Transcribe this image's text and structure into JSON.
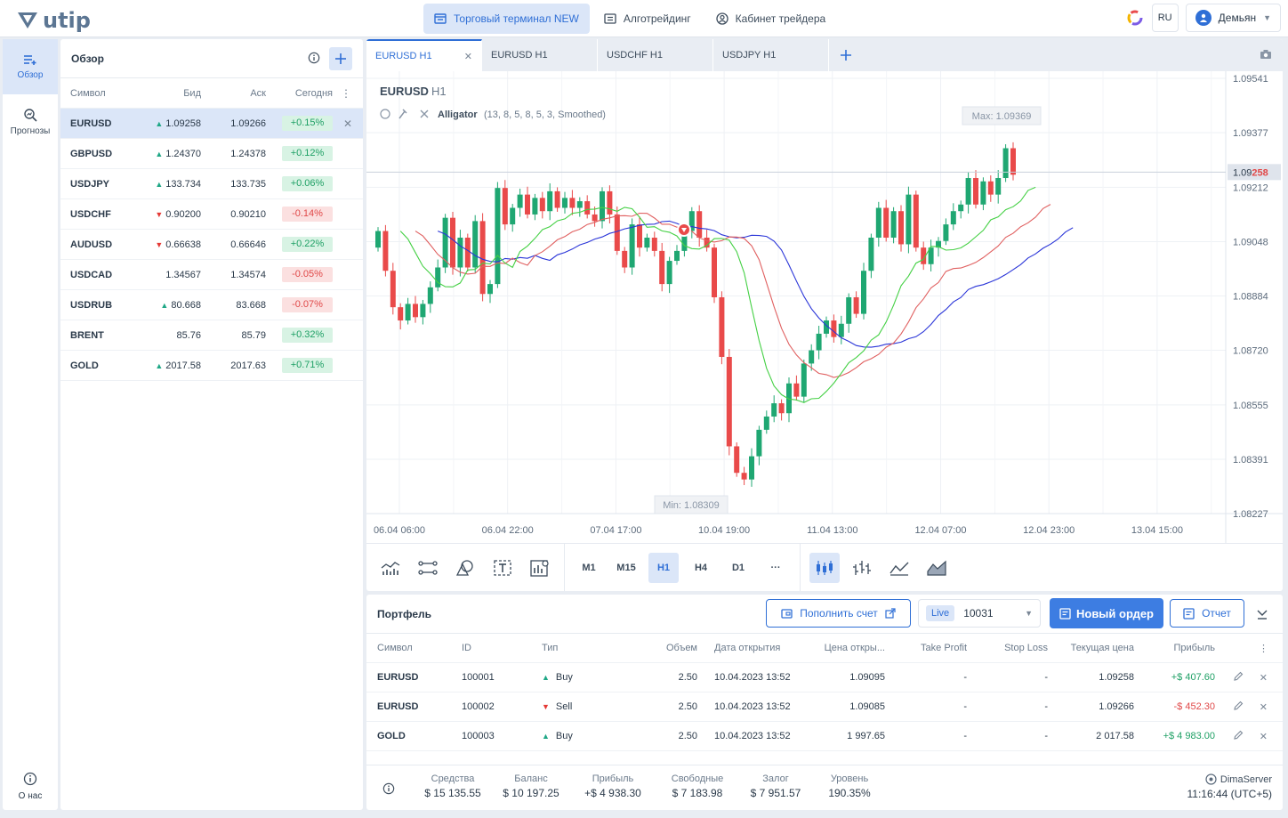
{
  "app": {
    "logo_text": "utip"
  },
  "nav": [
    {
      "label": "Торговый терминал NEW"
    },
    {
      "label": "Алготрейдинг"
    },
    {
      "label": "Кабинет трейдера"
    }
  ],
  "topright": {
    "lang": "RU",
    "user": "Демьян"
  },
  "rail": {
    "overview": "Обзор",
    "forecasts": "Прогнозы",
    "about": "О нас"
  },
  "watchlist": {
    "title": "Обзор",
    "headers": {
      "symbol": "Символ",
      "bid": "Бид",
      "ask": "Аск",
      "today": "Сегодня"
    },
    "rows": [
      {
        "symbol": "EURUSD",
        "dir": "up",
        "bid": "1.09258",
        "ask": "1.09266",
        "change": "+0.15%"
      },
      {
        "symbol": "GBPUSD",
        "dir": "up",
        "bid": "1.24370",
        "ask": "1.24378",
        "change": "+0.12%"
      },
      {
        "symbol": "USDJPY",
        "dir": "up",
        "bid": "133.734",
        "ask": "133.735",
        "change": "+0.06%"
      },
      {
        "symbol": "USDCHF",
        "dir": "down",
        "bid": "0.90200",
        "ask": "0.90210",
        "change": "-0.14%"
      },
      {
        "symbol": "AUDUSD",
        "dir": "down",
        "bid": "0.66638",
        "ask": "0.66646",
        "change": "+0.22%"
      },
      {
        "symbol": "USDCAD",
        "dir": "none",
        "bid": "1.34567",
        "ask": "1.34574",
        "change": "-0.05%"
      },
      {
        "symbol": "USDRUB",
        "dir": "up",
        "bid": "80.668",
        "ask": "83.668",
        "change": "-0.07%"
      },
      {
        "symbol": "BRENT",
        "dir": "none",
        "bid": "85.76",
        "ask": "85.79",
        "change": "+0.32%"
      },
      {
        "symbol": "GOLD",
        "dir": "up",
        "bid": "2017.58",
        "ask": "2017.63",
        "change": "+0.71%"
      }
    ]
  },
  "chart_tabs": [
    {
      "label": "EURUSD H1"
    },
    {
      "label": "EURUSD H1"
    },
    {
      "label": "USDCHF H1"
    },
    {
      "label": "USDJPY H1"
    }
  ],
  "chart_data": {
    "type": "candlestick",
    "symbol": "EURUSD",
    "timeframe": "H1",
    "indicator": {
      "name": "Alligator",
      "params": "(13, 8, 5, 8, 5, 3, Smoothed)"
    },
    "max_label": "Max: 1.09369",
    "min_label": "Min: 1.08309",
    "current_price": {
      "prefix": "1.09",
      "suffix": "258",
      "value": 1.09258
    },
    "y_ticks": [
      "1.09541",
      "1.09377",
      "1.09212",
      "1.09048",
      "1.08884",
      "1.08720",
      "1.08555",
      "1.08391",
      "1.08227"
    ],
    "ylim": [
      1.08227,
      1.09541
    ],
    "x_ticks": [
      "06.04 06:00",
      "06.04 22:00",
      "07.04 17:00",
      "10.04 19:00",
      "11.04 13:00",
      "12.04 07:00",
      "12.04 23:00",
      "13.04 15:00"
    ],
    "candles": [
      [
        1.0903,
        1.0908
      ],
      [
        1.0908,
        1.0896
      ],
      [
        1.0896,
        1.0885
      ],
      [
        1.0885,
        1.0881
      ],
      [
        1.0881,
        1.0886
      ],
      [
        1.0886,
        1.0882
      ],
      [
        1.0882,
        1.0886
      ],
      [
        1.0886,
        1.0891
      ],
      [
        1.0891,
        1.0897
      ],
      [
        1.0897,
        1.0912
      ],
      [
        1.0912,
        1.0897
      ],
      [
        1.0897,
        1.0906
      ],
      [
        1.0906,
        1.0897
      ],
      [
        1.0897,
        1.0911
      ],
      [
        1.0911,
        1.0889
      ],
      [
        1.0889,
        1.0892
      ],
      [
        1.0892,
        1.0921
      ],
      [
        1.0921,
        1.091
      ],
      [
        1.091,
        1.0915
      ],
      [
        1.0915,
        1.0919
      ],
      [
        1.0919,
        1.0913
      ],
      [
        1.0913,
        1.0918
      ],
      [
        1.0918,
        1.0914
      ],
      [
        1.0914,
        1.092
      ],
      [
        1.092,
        1.0915
      ],
      [
        1.0915,
        1.0918
      ],
      [
        1.0918,
        1.0915
      ],
      [
        1.0915,
        1.0917
      ],
      [
        1.0917,
        1.0913
      ],
      [
        1.0913,
        1.0911
      ],
      [
        1.0911,
        1.092
      ],
      [
        1.092,
        1.0913
      ],
      [
        1.0913,
        1.0902
      ],
      [
        1.0902,
        1.0897
      ],
      [
        1.0897,
        1.091
      ],
      [
        1.091,
        1.0903
      ],
      [
        1.0903,
        1.0906
      ],
      [
        1.0906,
        1.0902
      ],
      [
        1.0902,
        1.0892
      ],
      [
        1.0892,
        1.0899
      ],
      [
        1.0899,
        1.0902
      ],
      [
        1.0902,
        1.0908
      ],
      [
        1.0908,
        1.0914
      ],
      [
        1.0914,
        1.0906
      ],
      [
        1.0906,
        1.0903
      ],
      [
        1.0903,
        1.0888
      ],
      [
        1.0888,
        1.087
      ],
      [
        1.087,
        1.0843
      ],
      [
        1.0843,
        1.0835
      ],
      [
        1.0835,
        1.0833
      ],
      [
        1.0833,
        1.084
      ],
      [
        1.084,
        1.0848
      ],
      [
        1.0848,
        1.0852
      ],
      [
        1.0852,
        1.0856
      ],
      [
        1.0856,
        1.0853
      ],
      [
        1.0853,
        1.0862
      ],
      [
        1.0862,
        1.0858
      ],
      [
        1.0858,
        1.0868
      ],
      [
        1.0868,
        1.0872
      ],
      [
        1.0872,
        1.0877
      ],
      [
        1.0877,
        1.0881
      ],
      [
        1.0881,
        1.0876
      ],
      [
        1.0876,
        1.088
      ],
      [
        1.088,
        1.0888
      ],
      [
        1.0888,
        1.0883
      ],
      [
        1.0883,
        1.0896
      ],
      [
        1.0896,
        1.0906
      ],
      [
        1.0906,
        1.0915
      ],
      [
        1.0915,
        1.0906
      ],
      [
        1.0906,
        1.0914
      ],
      [
        1.0914,
        1.0904
      ],
      [
        1.0904,
        1.0919
      ],
      [
        1.0919,
        1.0903
      ],
      [
        1.0903,
        1.0898
      ],
      [
        1.0898,
        1.0903
      ],
      [
        1.0903,
        1.0905
      ],
      [
        1.0905,
        1.091
      ],
      [
        1.091,
        1.0914
      ],
      [
        1.0914,
        1.0916
      ],
      [
        1.0916,
        1.0924
      ],
      [
        1.0924,
        1.0916
      ],
      [
        1.0916,
        1.0923
      ],
      [
        1.0923,
        1.0919
      ],
      [
        1.0919,
        1.0924
      ],
      [
        1.0924,
        1.0933
      ],
      [
        1.0933,
        1.0925
      ]
    ],
    "jaw_color": "#2a35d8",
    "teeth_color": "#e06060",
    "lips_color": "#44d044"
  },
  "timeframes": [
    "M1",
    "M15",
    "H1",
    "H4",
    "D1",
    "···"
  ],
  "portfolio": {
    "title": "Портфель",
    "deposit_label": "Пополнить счет",
    "account_badge": "Live",
    "account_number": "10031",
    "new_order_label": "Новый ордер",
    "report_label": "Отчет",
    "headers": {
      "symbol": "Символ",
      "id": "ID",
      "type": "Тип",
      "volume": "Объем",
      "open_date": "Дата открытия",
      "open_price": "Цена откры...",
      "tp": "Take Profit",
      "sl": "Stop Loss",
      "current": "Текущая цена",
      "profit": "Прибыль"
    },
    "rows": [
      {
        "symbol": "EURUSD",
        "id": "100001",
        "type": "Buy",
        "dir": "up",
        "volume": "2.50",
        "open_date": "10.04.2023 13:52",
        "open_price": "1.09095",
        "tp": "-",
        "sl": "-",
        "current": "1.09258",
        "profit": "+$ 407.60",
        "pos": true
      },
      {
        "symbol": "EURUSD",
        "id": "100002",
        "type": "Sell",
        "dir": "down",
        "volume": "2.50",
        "open_date": "10.04.2023 13:52",
        "open_price": "1.09085",
        "tp": "-",
        "sl": "-",
        "current": "1.09266",
        "profit": "-$ 452.30",
        "pos": false
      },
      {
        "symbol": "GOLD",
        "id": "100003",
        "type": "Buy",
        "dir": "up",
        "volume": "2.50",
        "open_date": "10.04.2023 13:52",
        "open_price": "1 997.65",
        "tp": "-",
        "sl": "-",
        "current": "2 017.58",
        "profit": "+$ 4 983.00",
        "pos": true
      }
    ],
    "footer": [
      {
        "label": "Средства",
        "value": "$ 15 135.55"
      },
      {
        "label": "Баланс",
        "value": "$ 10 197.25"
      },
      {
        "label": "Прибыль",
        "value": "+$ 4 938.30"
      },
      {
        "label": "Свободные",
        "value": "$ 7 183.98"
      },
      {
        "label": "Залог",
        "value": "$ 7 951.57"
      },
      {
        "label": "Уровень",
        "value": "190.35%"
      }
    ],
    "server": "DimaServer",
    "time": "11:16:44 (UTC+5)"
  }
}
